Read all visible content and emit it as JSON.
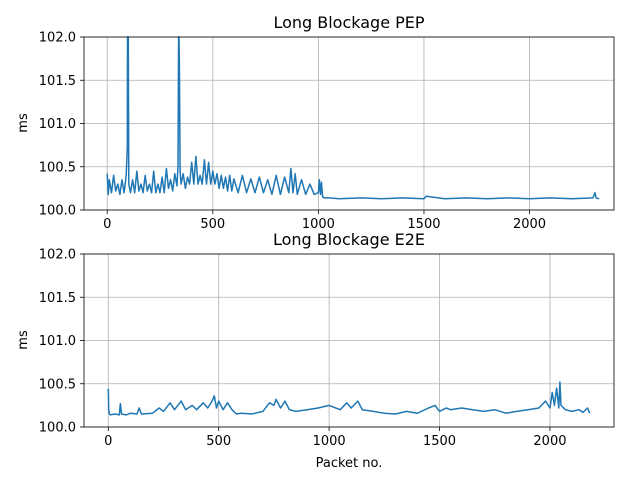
{
  "chart_data": [
    {
      "type": "line",
      "title": "Long Blockage PEP",
      "xlabel": "",
      "ylabel": "ms",
      "xlim": [
        -110,
        2400
      ],
      "ylim": [
        100.0,
        102.0
      ],
      "xticks": [
        0,
        500,
        1000,
        1500,
        2000
      ],
      "xtick_labels": [
        "0",
        "500",
        "1000",
        "1500",
        "2000"
      ],
      "yticks": [
        100.0,
        100.5,
        101.0,
        101.5,
        102.0
      ],
      "ytick_labels": [
        "100.0",
        "100.5",
        "101.0",
        "101.5",
        "102.0"
      ],
      "grid": true,
      "color": "#1f77b4",
      "series": [
        {
          "x": [
            0,
            5,
            10,
            20,
            30,
            40,
            50,
            60,
            70,
            80,
            90,
            95,
            96,
            98,
            100,
            102,
            110,
            120,
            130,
            140,
            150,
            160,
            170,
            180,
            190,
            200,
            210,
            220,
            230,
            240,
            250,
            260,
            270,
            280,
            290,
            300,
            310,
            320,
            330,
            335,
            338,
            340,
            342,
            345,
            350,
            360,
            370,
            380,
            390,
            400,
            410,
            420,
            430,
            440,
            450,
            460,
            470,
            480,
            490,
            500,
            510,
            520,
            530,
            540,
            550,
            560,
            570,
            580,
            590,
            600,
            620,
            640,
            660,
            680,
            700,
            720,
            740,
            760,
            780,
            800,
            820,
            840,
            860,
            870,
            880,
            890,
            900,
            920,
            940,
            960,
            980,
            1000,
            1005,
            1010,
            1015,
            1020,
            1030,
            1050,
            1100,
            1200,
            1300,
            1400,
            1500,
            1510,
            1600,
            1700,
            1800,
            1900,
            2000,
            2100,
            2200,
            2300,
            2310,
            2315,
            2330
          ],
          "y": [
            100.42,
            100.18,
            100.35,
            100.2,
            100.4,
            100.22,
            100.3,
            100.18,
            100.35,
            100.2,
            100.4,
            100.72,
            102.0,
            102.0,
            102.0,
            100.3,
            100.2,
            100.35,
            100.2,
            100.45,
            100.22,
            100.3,
            100.2,
            100.4,
            100.22,
            100.3,
            100.2,
            100.45,
            100.2,
            100.3,
            100.2,
            100.38,
            100.2,
            100.48,
            100.25,
            100.35,
            100.22,
            100.42,
            100.28,
            100.5,
            102.0,
            102.0,
            101.65,
            100.45,
            100.3,
            100.42,
            100.25,
            100.38,
            100.3,
            100.55,
            100.3,
            100.62,
            100.3,
            100.4,
            100.3,
            100.58,
            100.3,
            100.55,
            100.3,
            100.45,
            100.3,
            100.42,
            100.25,
            100.4,
            100.25,
            100.38,
            100.22,
            100.4,
            100.22,
            100.36,
            100.2,
            100.4,
            100.2,
            100.36,
            100.2,
            100.38,
            100.2,
            100.35,
            100.18,
            100.4,
            100.18,
            100.38,
            100.2,
            100.48,
            100.2,
            100.42,
            100.18,
            100.35,
            100.18,
            100.3,
            100.18,
            100.2,
            100.35,
            100.18,
            100.32,
            100.15,
            100.14,
            100.14,
            100.13,
            100.14,
            100.13,
            100.14,
            100.13,
            100.16,
            100.13,
            100.14,
            100.13,
            100.14,
            100.13,
            100.14,
            100.13,
            100.14,
            100.2,
            100.14,
            100.13
          ]
        }
      ]
    },
    {
      "type": "line",
      "title": "Long Blockage E2E",
      "xlabel": "Packet no.",
      "ylabel": "ms",
      "xlim": [
        -110,
        2290
      ],
      "ylim": [
        100.0,
        102.0
      ],
      "xticks": [
        0,
        500,
        1000,
        1500,
        2000
      ],
      "xtick_labels": [
        "0",
        "500",
        "1000",
        "1500",
        "2000"
      ],
      "yticks": [
        100.0,
        100.5,
        101.0,
        101.5,
        102.0
      ],
      "ytick_labels": [
        "100.0",
        "100.5",
        "101.0",
        "101.5",
        "102.0"
      ],
      "grid": true,
      "color": "#1f77b4",
      "series": [
        {
          "x": [
            0,
            2,
            5,
            10,
            30,
            50,
            55,
            60,
            80,
            100,
            130,
            140,
            150,
            200,
            230,
            250,
            280,
            300,
            330,
            350,
            380,
            400,
            430,
            450,
            470,
            480,
            490,
            500,
            520,
            540,
            560,
            580,
            600,
            650,
            700,
            730,
            750,
            760,
            780,
            800,
            820,
            850,
            900,
            950,
            1000,
            1050,
            1080,
            1100,
            1130,
            1150,
            1200,
            1250,
            1300,
            1350,
            1400,
            1450,
            1480,
            1500,
            1530,
            1550,
            1600,
            1650,
            1700,
            1750,
            1800,
            1850,
            1900,
            1950,
            1980,
            2000,
            2010,
            2020,
            2030,
            2040,
            2045,
            2050,
            2070,
            2100,
            2130,
            2150,
            2170,
            2180
          ],
          "y": [
            100.44,
            100.2,
            100.15,
            100.14,
            100.15,
            100.14,
            100.27,
            100.15,
            100.14,
            100.16,
            100.15,
            100.22,
            100.15,
            100.16,
            100.22,
            100.18,
            100.28,
            100.2,
            100.3,
            100.2,
            100.25,
            100.2,
            100.28,
            100.22,
            100.3,
            100.36,
            100.22,
            100.3,
            100.2,
            100.28,
            100.2,
            100.15,
            100.16,
            100.15,
            100.18,
            100.28,
            100.25,
            100.32,
            100.22,
            100.3,
            100.2,
            100.18,
            100.2,
            100.22,
            100.25,
            100.2,
            100.28,
            100.22,
            100.3,
            100.2,
            100.18,
            100.16,
            100.15,
            100.18,
            100.16,
            100.22,
            100.25,
            100.18,
            100.22,
            100.2,
            100.22,
            100.2,
            100.18,
            100.2,
            100.16,
            100.18,
            100.2,
            100.22,
            100.3,
            100.22,
            100.4,
            100.25,
            100.45,
            100.22,
            100.52,
            100.25,
            100.2,
            100.18,
            100.2,
            100.17,
            100.22,
            100.16
          ]
        }
      ]
    }
  ]
}
